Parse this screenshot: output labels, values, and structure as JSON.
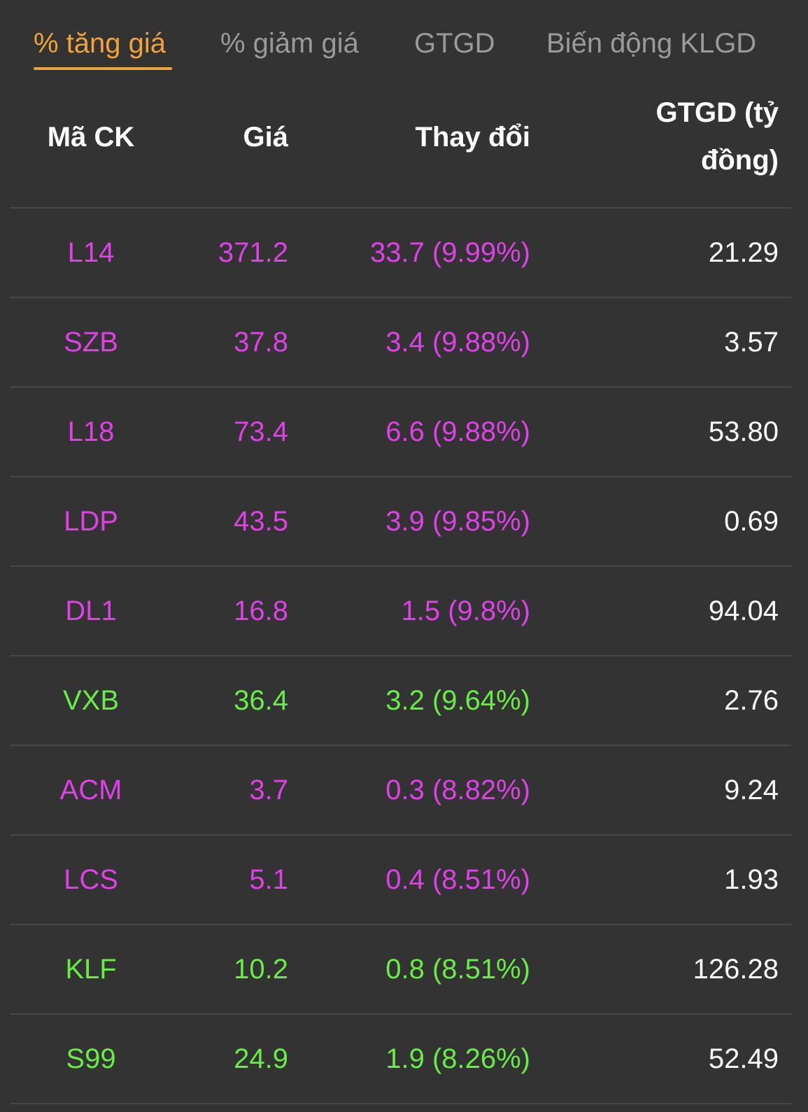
{
  "colors": {
    "background": "#333333",
    "active_tab": "#f2a23a",
    "inactive_tab": "#9a9a9a",
    "ceiling": "#e040e8",
    "up": "#66ee44",
    "value_text": "#ffffff",
    "divider": "#474747"
  },
  "tabs": [
    {
      "label": "% tăng giá",
      "active": true
    },
    {
      "label": "% giảm giá",
      "active": false
    },
    {
      "label": "GTGD",
      "active": false
    },
    {
      "label": "Biến động KLGD",
      "active": false
    }
  ],
  "table": {
    "headers": {
      "code": "Mã CK",
      "price": "Giá",
      "change": "Thay đổi",
      "value_line1": "GTGD (tỷ",
      "value_line2": "đồng)"
    },
    "rows": [
      {
        "code": "L14",
        "price": "371.2",
        "change": "33.7 (9.99%)",
        "value": "21.29",
        "status": "ceiling"
      },
      {
        "code": "SZB",
        "price": "37.8",
        "change": "3.4 (9.88%)",
        "value": "3.57",
        "status": "ceiling"
      },
      {
        "code": "L18",
        "price": "73.4",
        "change": "6.6 (9.88%)",
        "value": "53.80",
        "status": "ceiling"
      },
      {
        "code": "LDP",
        "price": "43.5",
        "change": "3.9 (9.85%)",
        "value": "0.69",
        "status": "ceiling"
      },
      {
        "code": "DL1",
        "price": "16.8",
        "change": "1.5 (9.8%)",
        "value": "94.04",
        "status": "ceiling"
      },
      {
        "code": "VXB",
        "price": "36.4",
        "change": "3.2 (9.64%)",
        "value": "2.76",
        "status": "up"
      },
      {
        "code": "ACM",
        "price": "3.7",
        "change": "0.3 (8.82%)",
        "value": "9.24",
        "status": "ceiling"
      },
      {
        "code": "LCS",
        "price": "5.1",
        "change": "0.4 (8.51%)",
        "value": "1.93",
        "status": "ceiling"
      },
      {
        "code": "KLF",
        "price": "10.2",
        "change": "0.8 (8.51%)",
        "value": "126.28",
        "status": "up"
      },
      {
        "code": "S99",
        "price": "24.9",
        "change": "1.9 (8.26%)",
        "value": "52.49",
        "status": "up"
      }
    ]
  }
}
